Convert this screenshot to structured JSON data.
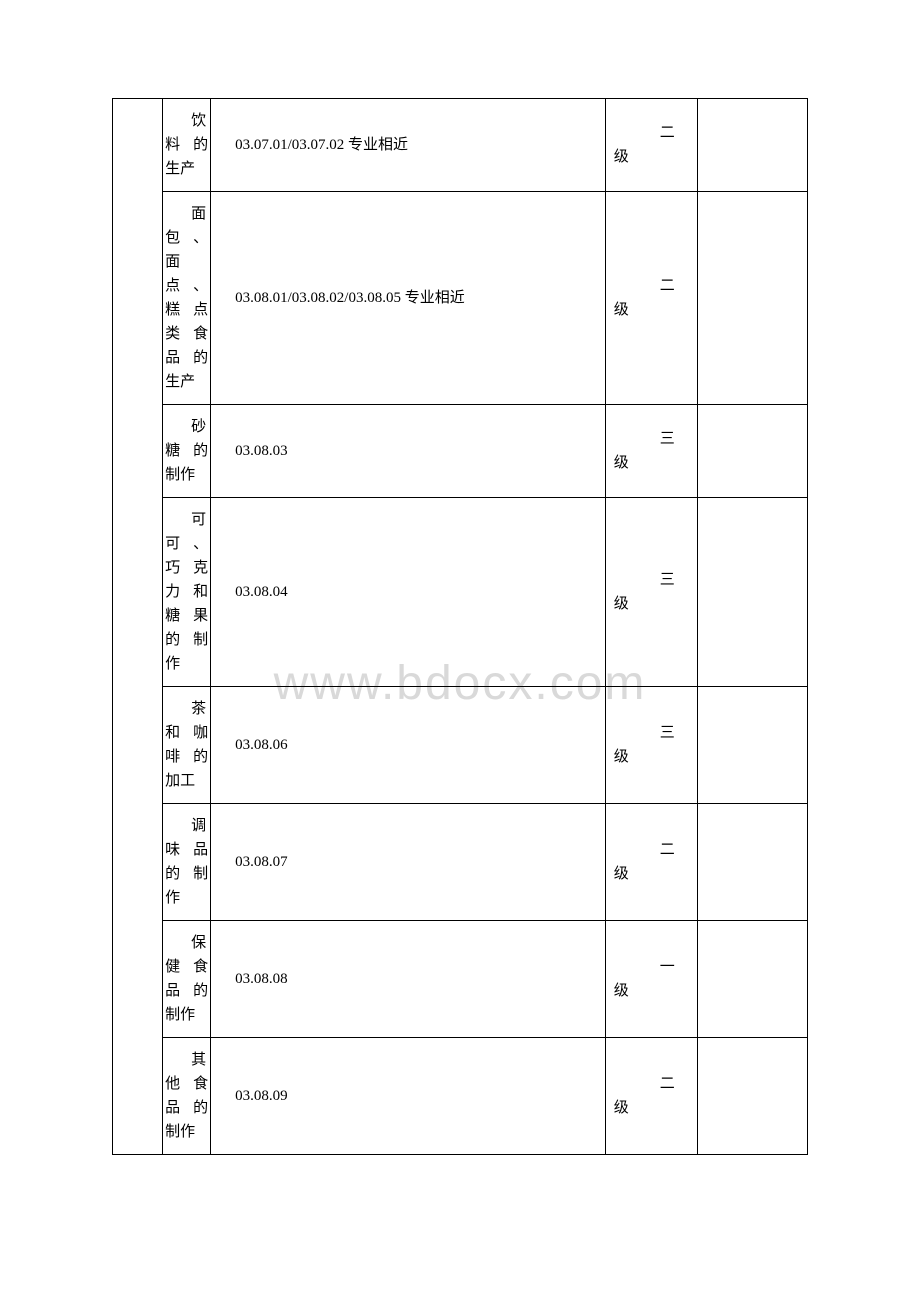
{
  "watermark": "www.bdocx.com",
  "table": {
    "columns": {
      "col_left_width": 50,
      "col_name_width": 48,
      "col_code_width": 394,
      "col_level_width": 92,
      "col_right_width": 110
    },
    "border_color": "#000000",
    "background_color": "#ffffff",
    "font_size": 15,
    "rows": [
      {
        "name_first": "饮",
        "name_rest": "料的生产",
        "code": "03.07.01/03.07.02 专业相近",
        "level_char": "二",
        "level_word": "级"
      },
      {
        "name_first": "面",
        "name_rest": "包、面点、糕点类食品的生产",
        "code": "03.08.01/03.08.02/03.08.05 专业相近",
        "level_char": "二",
        "level_word": "级"
      },
      {
        "name_first": "砂",
        "name_rest": "糖的制作",
        "code": "03.08.03",
        "level_char": "三",
        "level_word": "级"
      },
      {
        "name_first": "可",
        "name_rest": "可、巧克力和糖果的制作",
        "code": "03.08.04",
        "level_char": "三",
        "level_word": "级"
      },
      {
        "name_first": "茶",
        "name_rest": "和咖啡的加工",
        "code": "03.08.06",
        "level_char": "三",
        "level_word": "级"
      },
      {
        "name_first": "调",
        "name_rest": "味品的制作",
        "code": "03.08.07",
        "level_char": "二",
        "level_word": "级"
      },
      {
        "name_first": "保",
        "name_rest": "健食品的制作",
        "code": "03.08.08",
        "level_char": "一",
        "level_word": "级"
      },
      {
        "name_first": "其",
        "name_rest": "他食品的制作",
        "code": "03.08.09",
        "level_char": "二",
        "level_word": "级"
      }
    ]
  }
}
